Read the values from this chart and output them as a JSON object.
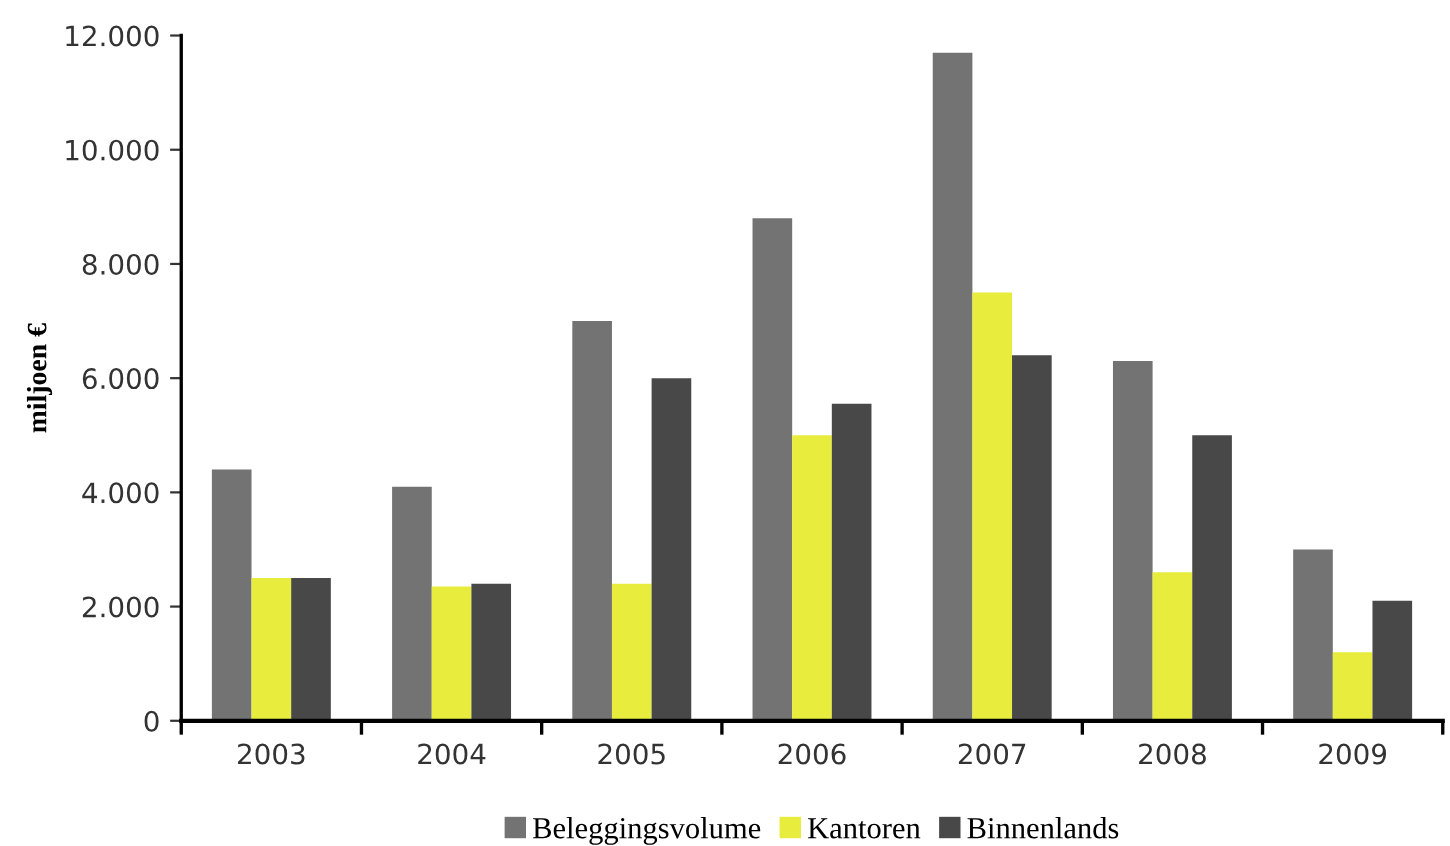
{
  "chart_data": {
    "type": "bar",
    "ylabel": "miljoen €",
    "categories": [
      "2003",
      "2004",
      "2005",
      "2006",
      "2007",
      "2008",
      "2009"
    ],
    "series": [
      {
        "name": "Beleggingsvolume",
        "color": "#737373",
        "values": [
          4400,
          4100,
          7000,
          8800,
          11700,
          6300,
          3000
        ]
      },
      {
        "name": "Kantoren",
        "color": "#e8ec3c",
        "values": [
          2500,
          2350,
          2400,
          5000,
          7500,
          2600,
          1200
        ]
      },
      {
        "name": "Binnenlands",
        "color": "#484848",
        "values": [
          2500,
          2400,
          6000,
          5550,
          6400,
          5000,
          2100
        ]
      }
    ],
    "ylim": [
      0,
      12000
    ],
    "yticks": [
      {
        "value": 0,
        "label": "0"
      },
      {
        "value": 2000,
        "label": "2.000"
      },
      {
        "value": 4000,
        "label": "4.000"
      },
      {
        "value": 6000,
        "label": "6.000"
      },
      {
        "value": 8000,
        "label": "8.000"
      },
      {
        "value": 10000,
        "label": "10.000"
      },
      {
        "value": 12000,
        "label": "12.000"
      }
    ],
    "grid": false,
    "legend": "bottom"
  }
}
